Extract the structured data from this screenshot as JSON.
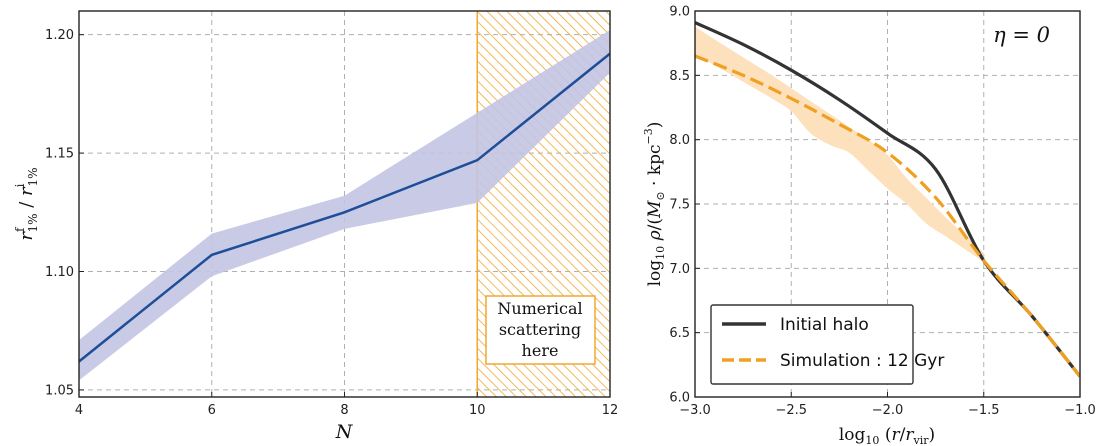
{
  "chart_data": [
    {
      "type": "line",
      "xlabel": "N",
      "ylabel": "r_{1%}^{f} / r_{1%}^{i}",
      "xlim": [
        4,
        12
      ],
      "ylim": [
        1.047,
        1.21
      ],
      "xticks": [
        4,
        6,
        8,
        10,
        12
      ],
      "yticks": [
        1.05,
        1.1,
        1.15,
        1.2
      ],
      "ytick_labels": [
        "1.05",
        "1.10",
        "1.15",
        "1.20"
      ],
      "grid": true,
      "series": [
        {
          "x": [
            4,
            6,
            8,
            10,
            12
          ],
          "y": [
            1.062,
            1.107,
            1.125,
            1.147,
            1.192
          ],
          "band_lower": [
            1.054,
            1.098,
            1.118,
            1.129,
            1.184
          ],
          "band_upper": [
            1.071,
            1.116,
            1.132,
            1.167,
            1.202
          ],
          "color": "#1f4e99",
          "band_color": "#c2c4e3"
        }
      ],
      "hatched_region": {
        "x_from": 10,
        "x_to": 12,
        "color": "#f0a830"
      },
      "annotation": [
        "Numerical",
        "scattering",
        "here"
      ]
    },
    {
      "type": "line",
      "xlabel": "log10 (r/r_vir)",
      "ylabel": "log10 ρ/(M⊙ · kpc^-3)",
      "xlim": [
        -3.0,
        -1.0
      ],
      "ylim": [
        6.0,
        9.0
      ],
      "xticks": [
        -3.0,
        -2.5,
        -2.0,
        -1.5,
        -1.0
      ],
      "xtick_labels": [
        "−3.0",
        "−2.5",
        "−2.0",
        "−1.5",
        "−1.0"
      ],
      "yticks": [
        6.0,
        6.5,
        7.0,
        7.5,
        8.0,
        8.5,
        9.0
      ],
      "ytick_labels": [
        "6.0",
        "6.5",
        "7.0",
        "7.5",
        "8.0",
        "8.5",
        "9.0"
      ],
      "grid": true,
      "panel_label": "η = 0",
      "legend_position": "lower-left",
      "series": [
        {
          "name": "Initial halo",
          "style": "solid",
          "color": "#333333",
          "x": [
            -3.0,
            -2.75,
            -2.5,
            -2.25,
            -2.0,
            -1.75,
            -1.5,
            -1.25,
            -1.0
          ],
          "y": [
            8.91,
            8.74,
            8.54,
            8.31,
            8.05,
            7.77,
            7.06,
            6.63,
            6.16
          ]
        },
        {
          "name": "Simulation : 12 Gyr",
          "style": "dashed",
          "color": "#f0a020",
          "x": [
            -3.0,
            -2.75,
            -2.5,
            -2.25,
            -2.0,
            -1.75,
            -1.5,
            -1.25,
            -1.0
          ],
          "y": [
            8.65,
            8.5,
            8.32,
            8.12,
            7.9,
            7.55,
            7.06,
            6.63,
            6.16
          ],
          "band_x": [
            -3.0,
            -2.9,
            -2.75,
            -2.6,
            -2.5,
            -2.4,
            -2.3,
            -2.2,
            -2.1,
            -2.0,
            -1.9,
            -1.8,
            -1.7,
            -1.6,
            -1.5
          ],
          "band_lower": [
            8.66,
            8.58,
            8.45,
            8.32,
            8.22,
            8.05,
            7.96,
            7.9,
            7.76,
            7.62,
            7.5,
            7.35,
            7.25,
            7.15,
            7.05
          ],
          "band_upper": [
            8.88,
            8.78,
            8.64,
            8.5,
            8.4,
            8.3,
            8.2,
            8.1,
            8.0,
            7.88,
            7.7,
            7.55,
            7.4,
            7.26,
            7.12
          ],
          "band_color": "#fde0bc"
        }
      ],
      "legend": [
        "Initial halo",
        "Simulation : 12 Gyr"
      ]
    }
  ]
}
